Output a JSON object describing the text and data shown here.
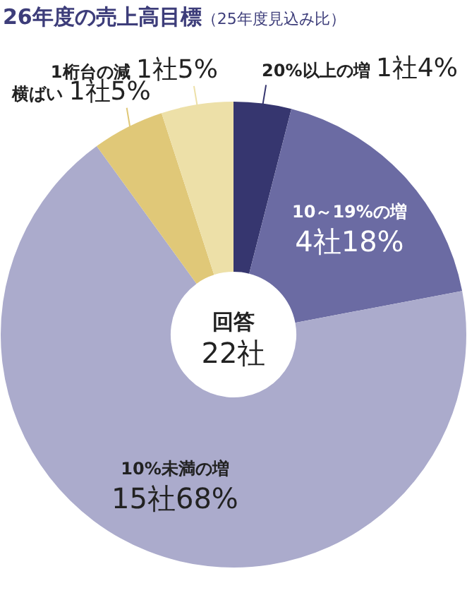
{
  "chart_data": {
    "type": "donut",
    "title": "26年度の売上高目標",
    "subtitle": "（25年度見込み比）",
    "categories": [
      "20%以上の増",
      "10～19%の増",
      "10%未満の増",
      "横ばい",
      "1桁台の減"
    ],
    "values": [
      4,
      18,
      68,
      5,
      5
    ],
    "value_labels": [
      "1社4%",
      "4社18%",
      "15社68%",
      "1社5%",
      "1社5%"
    ],
    "colors": [
      "#36366f",
      "#6b6ba3",
      "#ababcc",
      "#e0c878",
      "#ede0a8"
    ],
    "annotations": [
      "回答",
      "22社"
    ],
    "legend": false
  }
}
